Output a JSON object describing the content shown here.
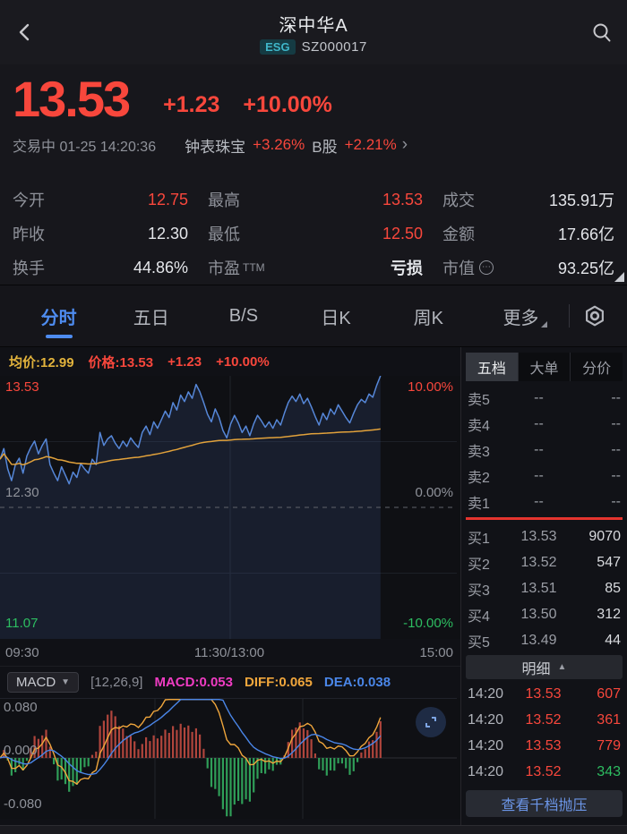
{
  "colors": {
    "red": "#f8473c",
    "green": "#2dbd61",
    "accent_blue": "#4e8cf0",
    "link_blue": "#6b95e6",
    "price_line": "#5687d8",
    "avg_line": "#e2a23b",
    "macd_pink": "#f03cc3",
    "diff_orange": "#f0a63c",
    "dea_blue": "#4a86e8",
    "bar_red": "#b0453c",
    "bar_green": "#2f9e58",
    "esg_teal": "#3fb6c9"
  },
  "header": {
    "title": "深中华A",
    "badge": "ESG",
    "code": "SZ000017",
    "back_icon": "chevron-left",
    "search_icon": "magnifier"
  },
  "quote": {
    "price": "13.53",
    "change": "+1.23",
    "change_pct": "+10.00%",
    "status": "交易中 01-25 14:20:36",
    "industry_name": "钟表珠宝",
    "industry_change": "+3.26%",
    "related_name": "B股",
    "related_change": "+2.21%",
    "chevron": "›"
  },
  "stats": {
    "cells": [
      {
        "label": "今开",
        "value": "12.75",
        "color": "red"
      },
      {
        "label": "最高",
        "value": "13.53",
        "color": "red"
      },
      {
        "label": "成交",
        "value": "135.91万",
        "color": "white"
      },
      {
        "label": "昨收",
        "value": "12.30",
        "color": "white"
      },
      {
        "label": "最低",
        "value": "12.50",
        "color": "red"
      },
      {
        "label": "金额",
        "value": "17.66亿",
        "color": "white"
      },
      {
        "label": "换手",
        "value": "44.86%",
        "color": "white"
      },
      {
        "label": "市盈",
        "label_suffix": "TTM",
        "value": "亏损",
        "color": "white-bold"
      },
      {
        "label": "市值",
        "info_icon": "⋯",
        "value": "93.25亿",
        "color": "white"
      }
    ]
  },
  "tabs": {
    "items": [
      "分时",
      "五日",
      "B/S",
      "日K",
      "周K",
      "更多"
    ],
    "active_index": 0,
    "settings_icon": "gear"
  },
  "chart_header": {
    "avg": "均价:12.99",
    "price": "价格:13.53",
    "change": "+1.23",
    "change_pct": "+10.00%"
  },
  "time_axis": [
    "09:30",
    "11:30/13:00",
    "15:00"
  ],
  "chart_data": [
    {
      "type": "line",
      "name": "intraday-price",
      "title": "分时图",
      "y_max": 13.53,
      "y_min": 11.07,
      "prev_close": 12.3,
      "y_axis_left": [
        "13.53",
        "12.30",
        "11.07"
      ],
      "y_axis_right": [
        "10.00%",
        "0.00%",
        "-10.00%"
      ],
      "x_labels": [
        "09:30",
        "11:30/13:00",
        "15:00"
      ],
      "session_elapsed_fraction": 0.833,
      "grid": "center vertical line, dashed prev-close line, faint quarter lines",
      "series": [
        {
          "name": "价格",
          "color": "#5687d8",
          "fill": "rgba(86,135,216,0.13)",
          "values": [
            12.75,
            12.85,
            12.66,
            12.55,
            12.7,
            12.76,
            12.62,
            12.78,
            12.86,
            12.92,
            12.8,
            12.88,
            12.94,
            12.7,
            12.62,
            12.55,
            12.68,
            12.6,
            12.52,
            12.63,
            12.58,
            12.71,
            12.66,
            12.62,
            12.75,
            12.7,
            13.0,
            12.88,
            12.94,
            12.97,
            12.9,
            12.85,
            12.92,
            12.87,
            12.95,
            12.9,
            12.86,
            13.0,
            13.06,
            12.98,
            13.1,
            13.04,
            13.12,
            13.2,
            13.14,
            13.28,
            13.21,
            13.35,
            13.29,
            13.38,
            13.32,
            13.45,
            13.38,
            13.28,
            13.17,
            13.1,
            13.22,
            13.14,
            13.02,
            12.95,
            13.08,
            13.16,
            13.09,
            13.0,
            13.06,
            12.97,
            13.08,
            13.16,
            13.11,
            13.05,
            13.1,
            13.04,
            13.12,
            13.07,
            13.18,
            13.28,
            13.34,
            13.29,
            13.36,
            13.27,
            13.32,
            13.24,
            13.15,
            13.07,
            13.18,
            13.12,
            13.22,
            13.17,
            13.26,
            13.2,
            13.14,
            13.09,
            13.18,
            13.26,
            13.31,
            13.28,
            13.36,
            13.33,
            13.44,
            13.53
          ]
        },
        {
          "name": "均价",
          "color": "#e2a23b",
          "derivation": "running-mean-of-price",
          "end_value": 12.99
        }
      ]
    },
    {
      "type": "bar",
      "name": "macd",
      "title": "MACD(12,26,9)",
      "params": [
        12,
        26,
        9
      ],
      "y_max": 0.08,
      "y_min": -0.08,
      "y_ticks": [
        "0.080",
        "0.000",
        "-0.080"
      ],
      "latest": {
        "macd": 0.053,
        "diff": 0.065,
        "dea": 0.038
      },
      "derivation": "EMA12-EMA26 DIFF, EMA9 DEA, histogram = 2*(DIFF-DEA), computed from intraday price series",
      "series": [
        {
          "name": "MACD柱",
          "positive_color": "#b0453c",
          "negative_color": "#2f9e58"
        },
        {
          "name": "DIFF",
          "color": "#f0a63c"
        },
        {
          "name": "DEA",
          "color": "#4a86e8"
        }
      ]
    }
  ],
  "macd_header": {
    "selector": "MACD",
    "params": "[12,26,9]",
    "macd": "MACD:0.053",
    "diff": "DIFF:0.065",
    "dea": "DEA:0.038",
    "y_top": "0.080",
    "y_mid": "0.000",
    "y_bottom": "-0.080"
  },
  "order_book": {
    "tabs": [
      "五档",
      "大单",
      "分价"
    ],
    "active_tab": 0,
    "asks": [
      {
        "label": "卖5",
        "price": "--",
        "vol": "--"
      },
      {
        "label": "卖4",
        "price": "--",
        "vol": "--"
      },
      {
        "label": "卖3",
        "price": "--",
        "vol": "--"
      },
      {
        "label": "卖2",
        "price": "--",
        "vol": "--"
      },
      {
        "label": "卖1",
        "price": "--",
        "vol": "--"
      }
    ],
    "bids": [
      {
        "label": "买1",
        "price": "13.53",
        "vol": "9070"
      },
      {
        "label": "买2",
        "price": "13.52",
        "vol": "547"
      },
      {
        "label": "买3",
        "price": "13.51",
        "vol": "85"
      },
      {
        "label": "买4",
        "price": "13.50",
        "vol": "312"
      },
      {
        "label": "买5",
        "price": "13.49",
        "vol": "44"
      }
    ],
    "detail_header": "明细",
    "details": [
      {
        "time": "14:20",
        "price": "13.53",
        "vol": "607",
        "vol_color": "red"
      },
      {
        "time": "14:20",
        "price": "13.52",
        "vol": "361",
        "vol_color": "red"
      },
      {
        "time": "14:20",
        "price": "13.53",
        "vol": "779",
        "vol_color": "red"
      },
      {
        "time": "14:20",
        "price": "13.52",
        "vol": "343",
        "vol_color": "green"
      }
    ],
    "button": "查看千档抛压"
  }
}
